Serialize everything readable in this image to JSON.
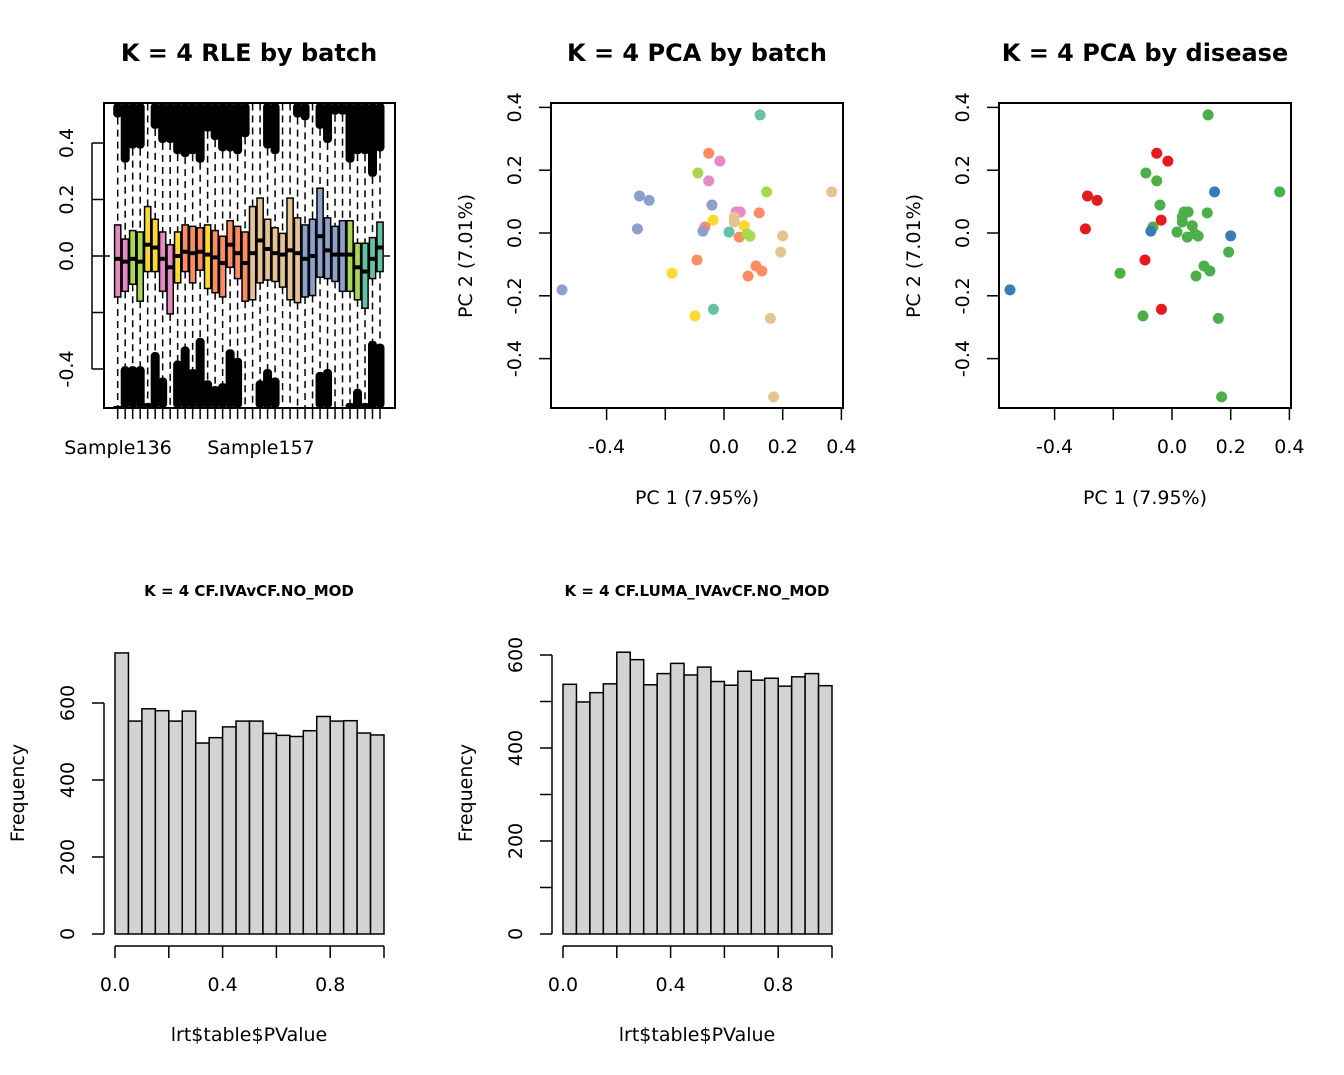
{
  "chart_data": [
    {
      "id": "rle",
      "type": "box",
      "title": "K = 4 RLE by batch",
      "xlabel": "",
      "ylabel": "",
      "ylim": [
        -0.54,
        0.54
      ],
      "yticks": [
        -0.4,
        -0.2,
        0.0,
        0.2,
        0.4
      ],
      "ytick_labels": [
        "-0.4",
        "",
        "0.0",
        "0.2",
        "0.4"
      ],
      "xtick_labels": [
        "Sample136",
        "Sample157"
      ],
      "reference_line": 0,
      "batch_colors": {
        "pink": "#e78ac3",
        "green": "#a6d854",
        "yellow": "#ffd92f",
        "orange": "#fc8d62",
        "tan": "#e5c494",
        "blue": "#8da0cb",
        "teal": "#66c2a5"
      },
      "boxes": [
        {
          "batch": "pink",
          "q3": 0.11,
          "median": -0.01,
          "q1": -0.145,
          "upper_outlier_min": 0.49,
          "lower_outlier_max": -0.53
        },
        {
          "batch": "pink",
          "q3": 0.06,
          "median": -0.02,
          "q1": -0.125,
          "upper_outlier_min": 0.33,
          "lower_outlier_max": -0.39
        },
        {
          "batch": "green",
          "q3": 0.09,
          "median": -0.01,
          "q1": -0.1,
          "upper_outlier_min": 0.38,
          "lower_outlier_max": -0.39
        },
        {
          "batch": "green",
          "q3": 0.085,
          "median": -0.02,
          "q1": -0.16,
          "upper_outlier_min": 0.38,
          "lower_outlier_max": -0.39
        },
        {
          "batch": "yellow",
          "q3": 0.175,
          "median": 0.04,
          "q1": -0.055,
          "upper_outlier_min": 0.54,
          "lower_outlier_max": -0.52
        },
        {
          "batch": "yellow",
          "q3": 0.13,
          "median": 0.03,
          "q1": -0.055,
          "upper_outlier_min": 0.45,
          "lower_outlier_max": -0.34
        },
        {
          "batch": "pink",
          "q3": 0.085,
          "median": -0.01,
          "q1": -0.125,
          "upper_outlier_min": 0.4,
          "lower_outlier_max": -0.43
        },
        {
          "batch": "pink",
          "q3": 0.04,
          "median": -0.04,
          "q1": -0.205,
          "upper_outlier_min": 0.4,
          "lower_outlier_max": -0.54
        },
        {
          "batch": "yellow",
          "q3": 0.085,
          "median": 0.0,
          "q1": -0.095,
          "upper_outlier_min": 0.36,
          "lower_outlier_max": -0.37
        },
        {
          "batch": "orange",
          "q3": 0.11,
          "median": 0.015,
          "q1": -0.055,
          "upper_outlier_min": 0.35,
          "lower_outlier_max": -0.32
        },
        {
          "batch": "orange",
          "q3": 0.105,
          "median": 0.01,
          "q1": -0.095,
          "upper_outlier_min": 0.36,
          "lower_outlier_max": -0.4
        },
        {
          "batch": "orange",
          "q3": 0.1,
          "median": 0.015,
          "q1": -0.05,
          "upper_outlier_min": 0.33,
          "lower_outlier_max": -0.29
        },
        {
          "batch": "yellow",
          "q3": 0.11,
          "median": 0.005,
          "q1": -0.115,
          "upper_outlier_min": 0.44,
          "lower_outlier_max": -0.44
        },
        {
          "batch": "orange",
          "q3": 0.09,
          "median": -0.005,
          "q1": -0.13,
          "upper_outlier_min": 0.41,
          "lower_outlier_max": -0.46
        },
        {
          "batch": "orange",
          "q3": 0.07,
          "median": -0.025,
          "q1": -0.145,
          "upper_outlier_min": 0.37,
          "lower_outlier_max": -0.45
        },
        {
          "batch": "orange",
          "q3": 0.125,
          "median": 0.04,
          "q1": -0.04,
          "upper_outlier_min": 0.37,
          "lower_outlier_max": -0.33
        },
        {
          "batch": "orange",
          "q3": 0.105,
          "median": 0.01,
          "q1": -0.08,
          "upper_outlier_min": 0.36,
          "lower_outlier_max": -0.36
        },
        {
          "batch": "orange",
          "q3": 0.085,
          "median": -0.025,
          "q1": -0.16,
          "upper_outlier_min": 0.42,
          "lower_outlier_max": -0.54
        },
        {
          "batch": "tan",
          "q3": 0.175,
          "median": 0.01,
          "q1": -0.155,
          "upper_outlier_min": 0.54,
          "lower_outlier_max": -0.54
        },
        {
          "batch": "tan",
          "q3": 0.205,
          "median": 0.055,
          "q1": -0.095,
          "upper_outlier_min": 0.54,
          "lower_outlier_max": -0.44
        },
        {
          "batch": "tan",
          "q3": 0.13,
          "median": 0.025,
          "q1": -0.085,
          "upper_outlier_min": 0.38,
          "lower_outlier_max": -0.4
        },
        {
          "batch": "tan",
          "q3": 0.1,
          "median": 0.01,
          "q1": -0.09,
          "upper_outlier_min": 0.36,
          "lower_outlier_max": -0.43
        },
        {
          "batch": "tan",
          "q3": 0.08,
          "median": 0.005,
          "q1": -0.11,
          "upper_outlier_min": 0.54,
          "lower_outlier_max": -0.54
        },
        {
          "batch": "tan",
          "q3": 0.205,
          "median": 0.02,
          "q1": -0.155,
          "upper_outlier_min": 0.54,
          "lower_outlier_max": -0.54
        },
        {
          "batch": "tan",
          "q3": 0.135,
          "median": 0.01,
          "q1": -0.165,
          "upper_outlier_min": 0.49,
          "lower_outlier_max": -0.54
        },
        {
          "batch": "blue",
          "q3": 0.11,
          "median": -0.01,
          "q1": -0.145,
          "upper_outlier_min": 0.48,
          "lower_outlier_max": -0.54
        },
        {
          "batch": "blue",
          "q3": 0.13,
          "median": 0.0,
          "q1": -0.14,
          "upper_outlier_min": 0.54,
          "lower_outlier_max": -0.54
        },
        {
          "batch": "blue",
          "q3": 0.24,
          "median": 0.07,
          "q1": -0.075,
          "upper_outlier_min": 0.45,
          "lower_outlier_max": -0.41
        },
        {
          "batch": "blue",
          "q3": 0.135,
          "median": 0.02,
          "q1": -0.08,
          "upper_outlier_min": 0.4,
          "lower_outlier_max": -0.4
        },
        {
          "batch": "blue",
          "q3": 0.105,
          "median": 0.005,
          "q1": -0.09,
          "upper_outlier_min": 0.5,
          "lower_outlier_max": -0.54
        },
        {
          "batch": "blue",
          "q3": 0.125,
          "median": 0.005,
          "q1": -0.125,
          "upper_outlier_min": 0.5,
          "lower_outlier_max": -0.54
        },
        {
          "batch": "green",
          "q3": 0.125,
          "median": 0.005,
          "q1": -0.125,
          "upper_outlier_min": 0.33,
          "lower_outlier_max": -0.52
        },
        {
          "batch": "green",
          "q3": 0.045,
          "median": -0.04,
          "q1": -0.155,
          "upper_outlier_min": 0.36,
          "lower_outlier_max": -0.47
        },
        {
          "batch": "teal",
          "q3": 0.045,
          "median": -0.055,
          "q1": -0.185,
          "upper_outlier_min": 0.36,
          "lower_outlier_max": -0.52
        },
        {
          "batch": "teal",
          "q3": 0.065,
          "median": -0.01,
          "q1": -0.08,
          "upper_outlier_min": 0.28,
          "lower_outlier_max": -0.3
        },
        {
          "batch": "teal",
          "q3": 0.12,
          "median": 0.03,
          "q1": -0.055,
          "upper_outlier_min": 0.37,
          "lower_outlier_max": -0.31
        }
      ]
    },
    {
      "id": "pca-batch",
      "type": "scatter",
      "title": "K = 4 PCA by batch",
      "xlabel": "PC 1 (7.95%)",
      "ylabel": "PC 2 (7.01%)",
      "xlim": [
        -0.58,
        0.41
      ],
      "ylim": [
        -0.56,
        0.41
      ],
      "xticks": [
        -0.4,
        -0.2,
        0.0,
        0.2,
        0.4
      ],
      "xtick_labels": [
        "-0.4",
        "",
        "0.0",
        "0.2",
        "0.4"
      ],
      "yticks": [
        -0.4,
        -0.2,
        0.0,
        0.2,
        0.4
      ],
      "ytick_labels": [
        "-0.4",
        "-0.2",
        "0.0",
        "0.2",
        "0.4"
      ],
      "color_by": "batch"
    },
    {
      "id": "pca-disease",
      "type": "scatter",
      "title": "K = 4 PCA by disease",
      "xlabel": "PC 1 (7.95%)",
      "ylabel": "PC 2 (7.01%)",
      "xlim": [
        -0.58,
        0.41
      ],
      "ylim": [
        -0.56,
        0.41
      ],
      "xticks": [
        -0.4,
        -0.2,
        0.0,
        0.2,
        0.4
      ],
      "xtick_labels": [
        "-0.4",
        "",
        "0.0",
        "0.2",
        "0.4"
      ],
      "yticks": [
        -0.4,
        -0.2,
        0.0,
        0.2,
        0.4
      ],
      "ytick_labels": [
        "-0.4",
        "-0.2",
        "0.0",
        "0.2",
        "0.4"
      ],
      "color_by": "disease",
      "disease_colors": {
        "red": "#e41a1c",
        "green": "#4daf4a",
        "blue": "#377eb8"
      }
    },
    {
      "id": "hist1",
      "type": "bar",
      "title": "K = 4 CF.IVAvCF.NO_MOD",
      "xlabel": "lrt$table$PValue",
      "ylabel": "Frequency",
      "bin_width": 0.05,
      "xlim": [
        0,
        1
      ],
      "xticks": [
        0.0,
        0.2,
        0.4,
        0.6,
        0.8,
        1.0
      ],
      "xtick_labels": [
        "0.0",
        "",
        "0.4",
        "",
        "0.8",
        ""
      ],
      "yticks": [
        0,
        200,
        400,
        600
      ],
      "ytick_labels": [
        "0",
        "200",
        "400",
        "600"
      ],
      "values": [
        730,
        553,
        585,
        580,
        553,
        579,
        496,
        510,
        538,
        553,
        553,
        521,
        516,
        513,
        528,
        565,
        553,
        554,
        522,
        517
      ]
    },
    {
      "id": "hist2",
      "type": "bar",
      "title": "K = 4 CF.LUMA_IVAvCF.NO_MOD",
      "xlabel": "lrt$table$PValue",
      "ylabel": "Frequency",
      "bin_width": 0.05,
      "xlim": [
        0,
        1
      ],
      "xticks": [
        0.0,
        0.2,
        0.4,
        0.6,
        0.8,
        1.0
      ],
      "xtick_labels": [
        "0.0",
        "",
        "0.4",
        "",
        "0.8",
        ""
      ],
      "yticks": [
        0,
        100,
        200,
        300,
        400,
        500,
        600
      ],
      "ytick_labels": [
        "0",
        "",
        "200",
        "",
        "400",
        "",
        "600"
      ],
      "values": [
        537,
        499,
        519,
        538,
        606,
        590,
        536,
        560,
        582,
        557,
        574,
        543,
        535,
        565,
        546,
        550,
        533,
        553,
        560,
        534
      ]
    }
  ],
  "pca_points": [
    {
      "pc1": 0.123,
      "pc2": 0.376,
      "batch": "teal",
      "disease": "green"
    },
    {
      "pc1": -0.052,
      "pc2": 0.254,
      "batch": "orange",
      "disease": "red"
    },
    {
      "pc1": -0.014,
      "pc2": 0.229,
      "batch": "pink",
      "disease": "red"
    },
    {
      "pc1": -0.089,
      "pc2": 0.191,
      "batch": "green",
      "disease": "green"
    },
    {
      "pc1": -0.052,
      "pc2": 0.166,
      "batch": "pink",
      "disease": "green"
    },
    {
      "pc1": -0.288,
      "pc2": 0.118,
      "batch": "blue",
      "disease": "red"
    },
    {
      "pc1": -0.255,
      "pc2": 0.104,
      "batch": "blue",
      "disease": "red"
    },
    {
      "pc1": 0.145,
      "pc2": 0.131,
      "batch": "green",
      "disease": "blue"
    },
    {
      "pc1": 0.367,
      "pc2": 0.131,
      "batch": "tan",
      "disease": "green"
    },
    {
      "pc1": -0.041,
      "pc2": 0.089,
      "batch": "blue",
      "disease": "green"
    },
    {
      "pc1": 0.12,
      "pc2": 0.064,
      "batch": "orange",
      "disease": "green"
    },
    {
      "pc1": -0.295,
      "pc2": 0.013,
      "batch": "blue",
      "disease": "red"
    },
    {
      "pc1": 0.2,
      "pc2": -0.009,
      "batch": "tan",
      "disease": "blue"
    },
    {
      "pc1": 0.193,
      "pc2": -0.061,
      "batch": "tan",
      "disease": "green"
    },
    {
      "pc1": 0.041,
      "pc2": 0.067,
      "batch": "pink",
      "disease": "green"
    },
    {
      "pc1": 0.055,
      "pc2": 0.067,
      "batch": "pink",
      "disease": "green"
    },
    {
      "pc1": 0.035,
      "pc2": 0.051,
      "batch": "tan",
      "disease": "green"
    },
    {
      "pc1": 0.035,
      "pc2": 0.035,
      "batch": "tan",
      "disease": "green"
    },
    {
      "pc1": -0.037,
      "pc2": 0.041,
      "batch": "yellow",
      "disease": "red"
    },
    {
      "pc1": -0.065,
      "pc2": 0.019,
      "batch": "orange",
      "disease": "green"
    },
    {
      "pc1": -0.072,
      "pc2": 0.006,
      "batch": "blue",
      "disease": "blue"
    },
    {
      "pc1": 0.069,
      "pc2": 0.023,
      "batch": "yellow",
      "disease": "green"
    },
    {
      "pc1": 0.017,
      "pc2": 0.003,
      "batch": "teal",
      "disease": "green"
    },
    {
      "pc1": 0.052,
      "pc2": -0.013,
      "batch": "orange",
      "disease": "green"
    },
    {
      "pc1": 0.089,
      "pc2": -0.01,
      "batch": "green",
      "disease": "green"
    },
    {
      "pc1": 0.078,
      "pc2": -0.003,
      "batch": "green",
      "disease": "green"
    },
    {
      "pc1": -0.092,
      "pc2": -0.086,
      "batch": "orange",
      "disease": "red"
    },
    {
      "pc1": -0.177,
      "pc2": -0.128,
      "batch": "yellow",
      "disease": "green"
    },
    {
      "pc1": -0.552,
      "pc2": -0.181,
      "batch": "blue",
      "disease": "blue"
    },
    {
      "pc1": 0.109,
      "pc2": -0.105,
      "batch": "orange",
      "disease": "green"
    },
    {
      "pc1": 0.129,
      "pc2": -0.121,
      "batch": "orange",
      "disease": "green"
    },
    {
      "pc1": 0.082,
      "pc2": -0.137,
      "batch": "orange",
      "disease": "green"
    },
    {
      "pc1": -0.036,
      "pc2": -0.243,
      "batch": "teal",
      "disease": "red"
    },
    {
      "pc1": -0.099,
      "pc2": -0.264,
      "batch": "yellow",
      "disease": "green"
    },
    {
      "pc1": 0.158,
      "pc2": -0.272,
      "batch": "tan",
      "disease": "green"
    },
    {
      "pc1": 0.169,
      "pc2": -0.522,
      "batch": "tan",
      "disease": "green"
    }
  ]
}
